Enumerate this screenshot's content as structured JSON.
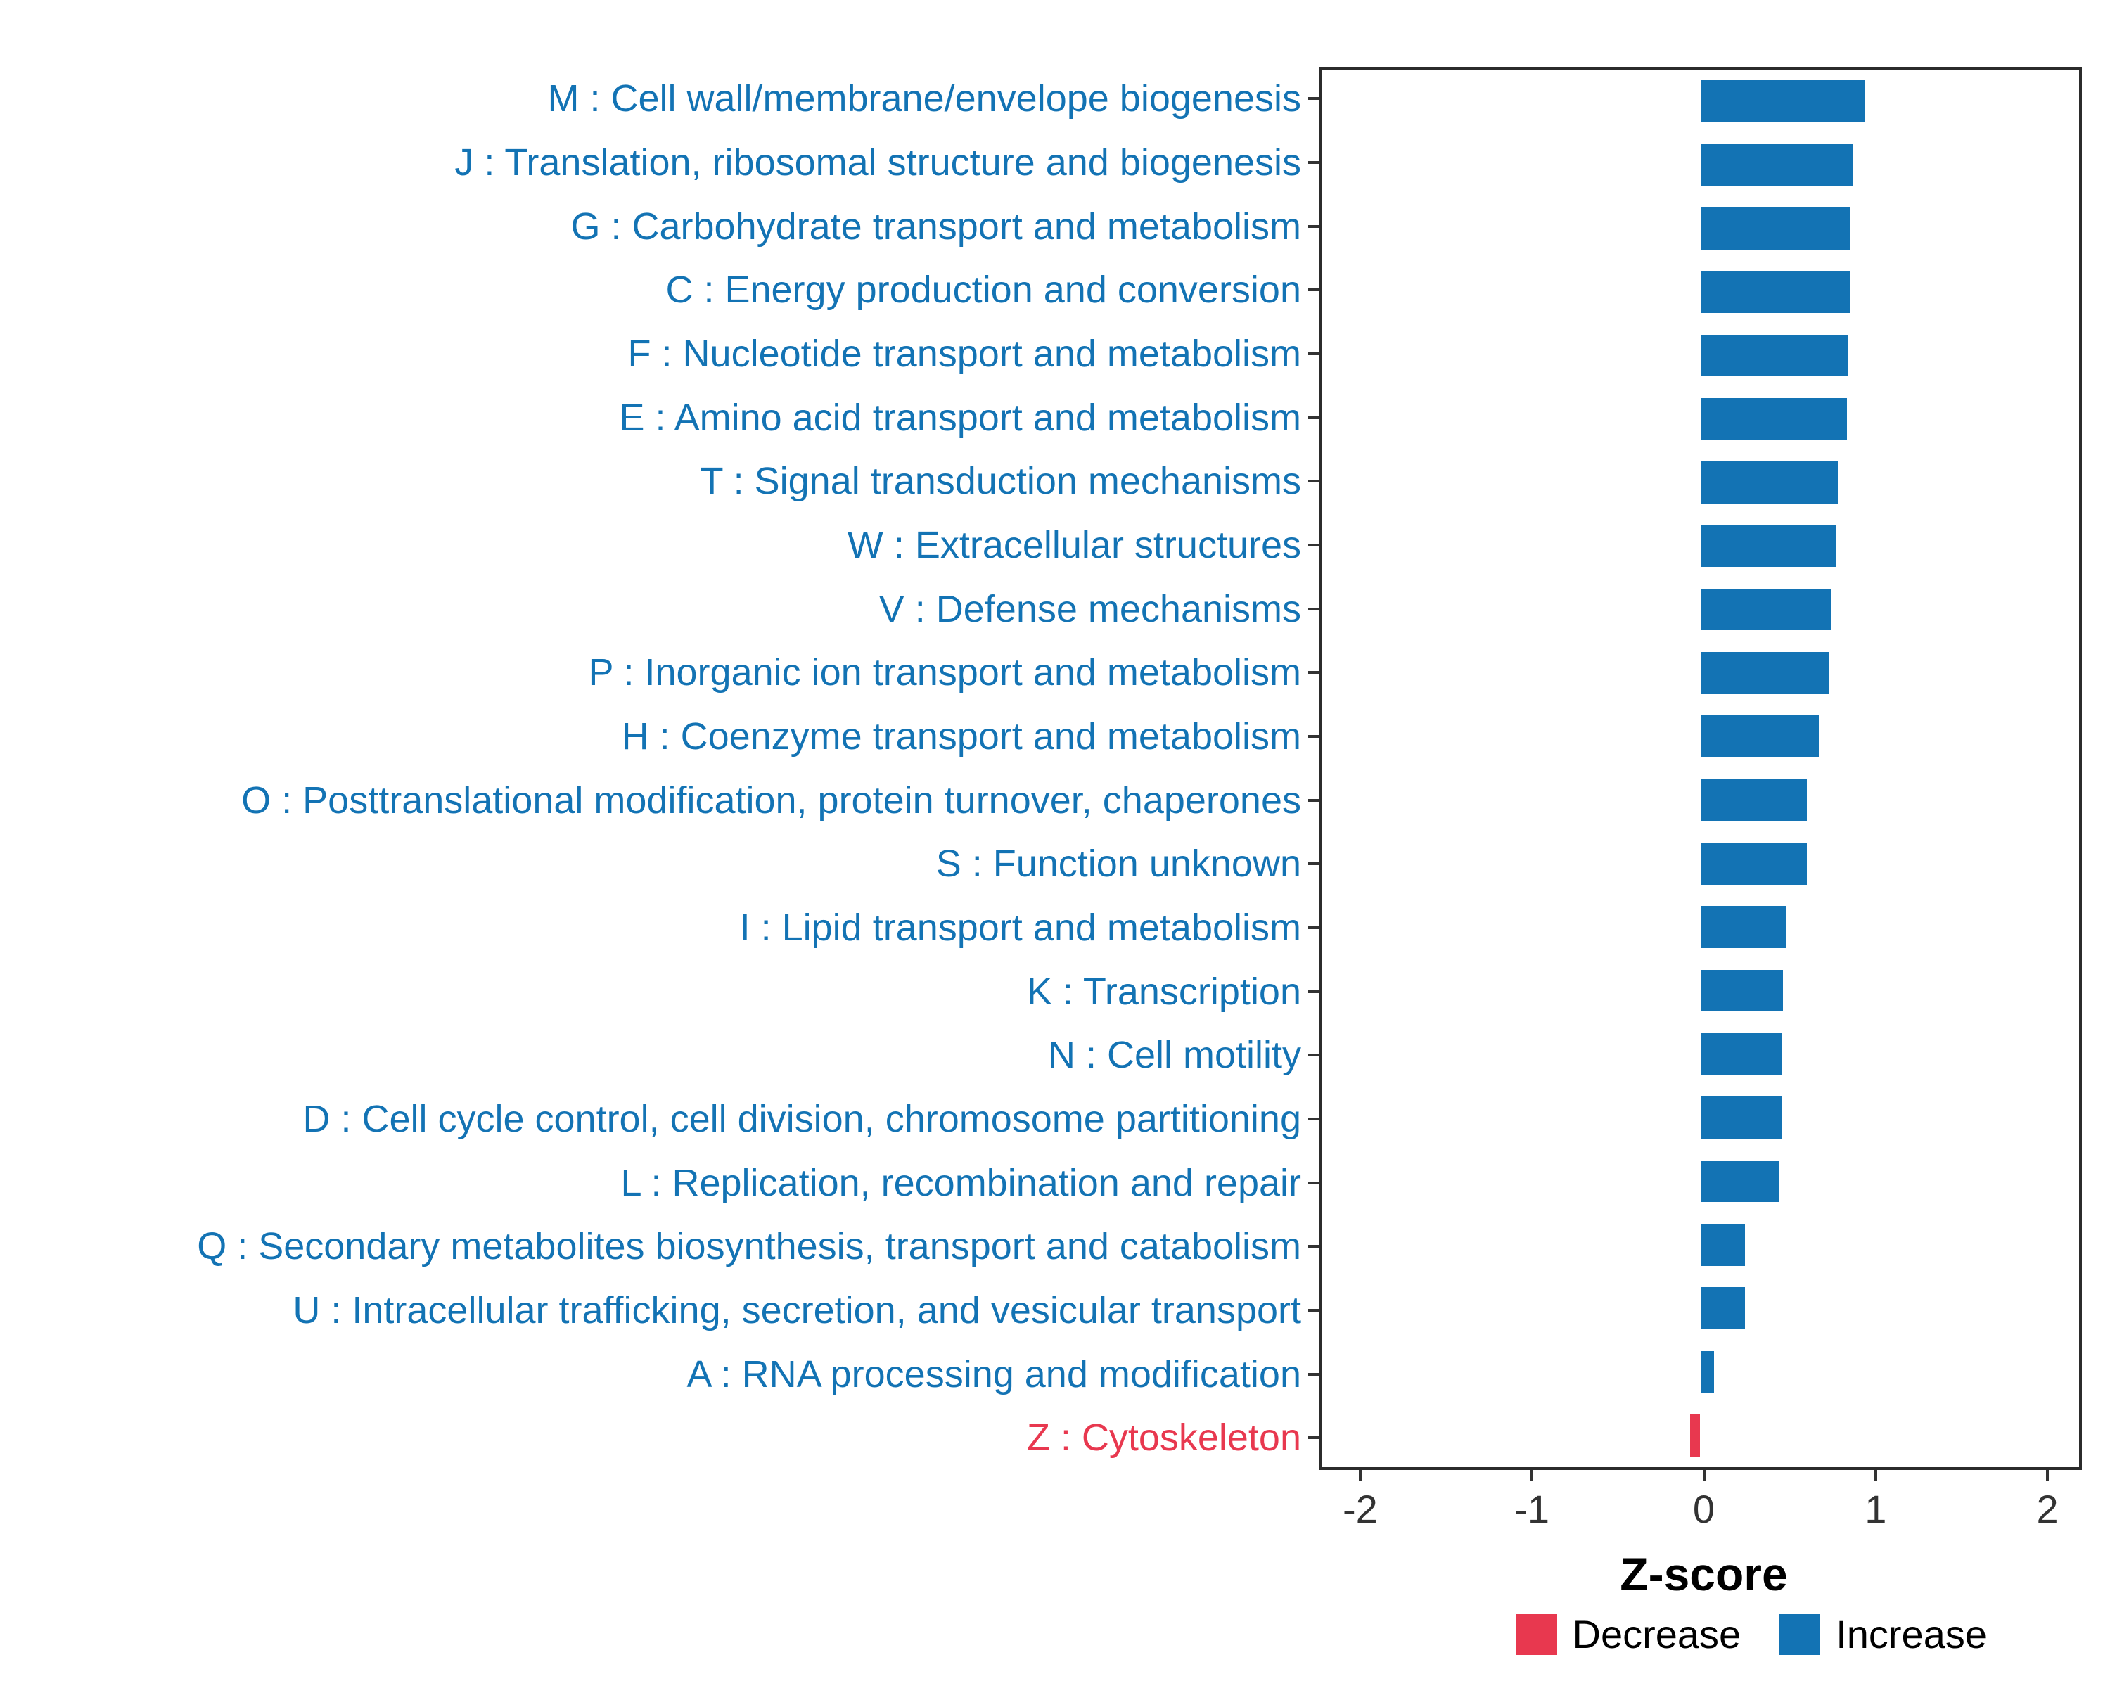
{
  "chart_data": {
    "type": "bar",
    "orientation": "horizontal",
    "xlabel": "Z-score",
    "ylabel": "",
    "xlim": [
      -2.2,
      2.2
    ],
    "x_ticks": [
      -2,
      -1,
      0,
      1,
      2
    ],
    "grid": false,
    "legend_position": "bottom-right",
    "colors": {
      "increase": "#1373B4",
      "decrease": "#E8384F"
    },
    "legend": [
      {
        "label": "Decrease",
        "key": "decrease"
      },
      {
        "label": "Increase",
        "key": "increase"
      }
    ],
    "rows": [
      {
        "label": "M : Cell wall/membrane/envelope biogenesis",
        "value": 0.96,
        "direction": "increase"
      },
      {
        "label": "J : Translation, ribosomal structure and biogenesis",
        "value": 0.89,
        "direction": "increase"
      },
      {
        "label": "G : Carbohydrate transport and metabolism",
        "value": 0.87,
        "direction": "increase"
      },
      {
        "label": "C : Energy production and conversion",
        "value": 0.87,
        "direction": "increase"
      },
      {
        "label": "F : Nucleotide transport and metabolism",
        "value": 0.86,
        "direction": "increase"
      },
      {
        "label": "E : Amino acid transport and metabolism",
        "value": 0.85,
        "direction": "increase"
      },
      {
        "label": "T : Signal transduction mechanisms",
        "value": 0.8,
        "direction": "increase"
      },
      {
        "label": "W : Extracellular structures",
        "value": 0.79,
        "direction": "increase"
      },
      {
        "label": "V : Defense mechanisms",
        "value": 0.76,
        "direction": "increase"
      },
      {
        "label": "P : Inorganic ion transport and metabolism",
        "value": 0.75,
        "direction": "increase"
      },
      {
        "label": "H : Coenzyme transport and metabolism",
        "value": 0.69,
        "direction": "increase"
      },
      {
        "label": "O : Posttranslational modification, protein turnover, chaperones",
        "value": 0.62,
        "direction": "increase"
      },
      {
        "label": "S : Function unknown",
        "value": 0.62,
        "direction": "increase"
      },
      {
        "label": "I : Lipid transport and metabolism",
        "value": 0.5,
        "direction": "increase"
      },
      {
        "label": "K : Transcription",
        "value": 0.48,
        "direction": "increase"
      },
      {
        "label": "N : Cell motility",
        "value": 0.47,
        "direction": "increase"
      },
      {
        "label": "D : Cell cycle control, cell division, chromosome partitioning",
        "value": 0.47,
        "direction": "increase"
      },
      {
        "label": "L : Replication, recombination and repair",
        "value": 0.46,
        "direction": "increase"
      },
      {
        "label": "Q : Secondary metabolites biosynthesis, transport and catabolism",
        "value": 0.26,
        "direction": "increase"
      },
      {
        "label": "U : Intracellular trafficking, secretion, and vesicular transport",
        "value": 0.26,
        "direction": "increase"
      },
      {
        "label": "A : RNA processing and modification",
        "value": 0.08,
        "direction": "increase"
      },
      {
        "label": "Z : Cytoskeleton",
        "value": -0.06,
        "direction": "decrease"
      }
    ]
  }
}
